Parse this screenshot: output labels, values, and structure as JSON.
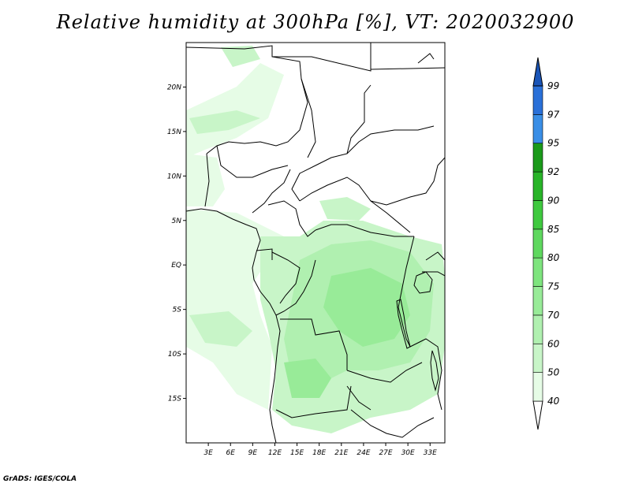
{
  "title": "Relative humidity at 300hPa [%], VT: 2020032900",
  "credit": "GrADS: IGES/COLA",
  "map": {
    "lon_range": [
      0,
      35
    ],
    "lat_range": [
      -20,
      25
    ],
    "lat_ticks": [
      {
        "value": 20,
        "label": "20N"
      },
      {
        "value": 15,
        "label": "15N"
      },
      {
        "value": 10,
        "label": "10N"
      },
      {
        "value": 5,
        "label": "5N"
      },
      {
        "value": 0,
        "label": "EQ"
      },
      {
        "value": -5,
        "label": "5S"
      },
      {
        "value": -10,
        "label": "10S"
      },
      {
        "value": -15,
        "label": "15S"
      }
    ],
    "lon_ticks": [
      {
        "value": 3,
        "label": "3E"
      },
      {
        "value": 6,
        "label": "6E"
      },
      {
        "value": 9,
        "label": "9E"
      },
      {
        "value": 12,
        "label": "12E"
      },
      {
        "value": 15,
        "label": "15E"
      },
      {
        "value": 18,
        "label": "18E"
      },
      {
        "value": 21,
        "label": "21E"
      },
      {
        "value": 24,
        "label": "24E"
      },
      {
        "value": 27,
        "label": "27E"
      },
      {
        "value": 30,
        "label": "30E"
      },
      {
        "value": 33,
        "label": "33E"
      }
    ]
  },
  "colorbar": {
    "levels": [
      "40",
      "50",
      "60",
      "70",
      "75",
      "80",
      "85",
      "90",
      "92",
      "95",
      "97",
      "99"
    ],
    "colors": [
      "#e6fce6",
      "#c8f5c8",
      "#b0f0b0",
      "#98eb98",
      "#7ee47e",
      "#5fd85f",
      "#3fc93f",
      "#28b428",
      "#1a9a1a",
      "#3a8ee6",
      "#2a70d8",
      "#1a55b8"
    ]
  }
}
